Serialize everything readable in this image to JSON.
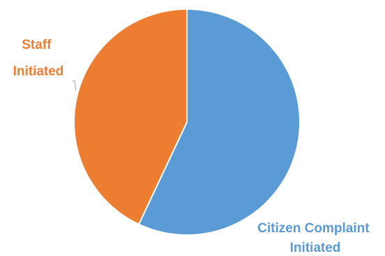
{
  "chart_data": {
    "type": "pie",
    "title": "",
    "start_angle_deg": 0,
    "direction": "clockwise",
    "slices": [
      {
        "label_lines": [
          "Citizen Complaint",
          "Initiated"
        ],
        "value": 57,
        "color": "#5b9bd5"
      },
      {
        "label_lines": [
          "Staff",
          "Initiated"
        ],
        "value": 43,
        "color": "#ed7d31"
      }
    ],
    "legend": "none"
  }
}
